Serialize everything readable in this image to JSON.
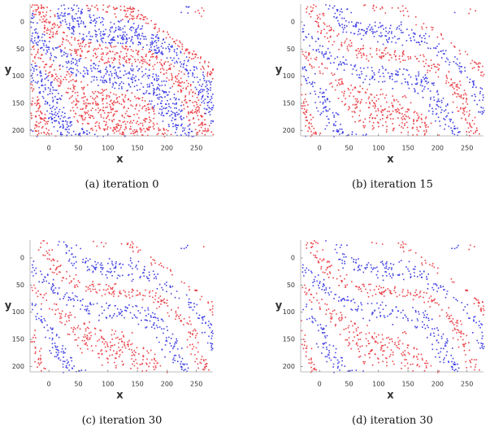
{
  "figure": {
    "panels": [
      {
        "caption": "(a) iteration 0",
        "xlabel": "x",
        "ylabel": "y",
        "xlim": [
          -32,
          278
        ],
        "ylim": [
          -33,
          210
        ],
        "xticks": [
          0,
          50,
          100,
          150,
          200,
          250
        ],
        "yticks": [
          0,
          50,
          100,
          150,
          200
        ]
      },
      {
        "caption": "(b) iteration 15",
        "xlabel": "x",
        "ylabel": "y",
        "xlim": [
          -32,
          278
        ],
        "ylim": [
          -33,
          210
        ],
        "xticks": [
          0,
          50,
          100,
          150,
          200,
          250
        ],
        "yticks": [
          0,
          50,
          100,
          150,
          200
        ]
      },
      {
        "caption": "(c) iteration 30",
        "xlabel": "x",
        "ylabel": "y",
        "xlim": [
          -32,
          278
        ],
        "ylim": [
          -33,
          210
        ],
        "xticks": [
          0,
          50,
          100,
          150,
          200,
          250
        ],
        "yticks": [
          0,
          50,
          100,
          150,
          200
        ]
      },
      {
        "caption": "(d) iteration 30",
        "xlabel": "x",
        "ylabel": "y",
        "xlim": [
          -32,
          278
        ],
        "ylim": [
          -33,
          210
        ],
        "xticks": [
          0,
          50,
          100,
          150,
          200,
          250
        ],
        "yticks": [
          0,
          50,
          100,
          150,
          200
        ]
      }
    ]
  }
}
